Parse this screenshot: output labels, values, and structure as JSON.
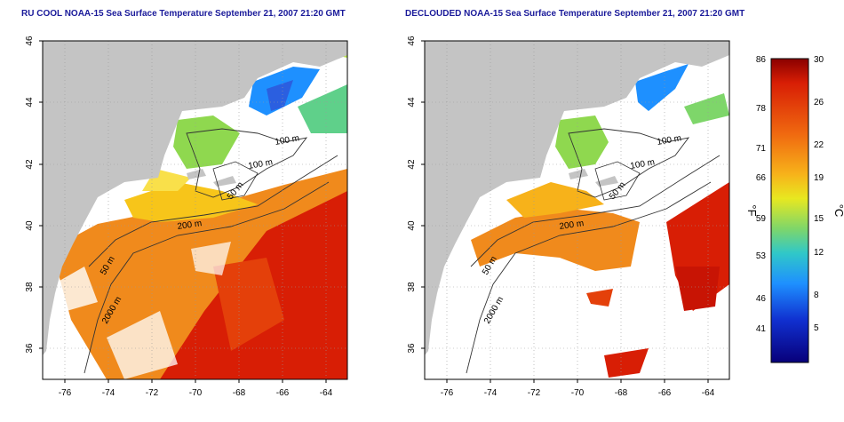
{
  "panels": [
    {
      "title": "RU COOL NOAA-15 Sea Surface Temperature September 21, 2007 21:20 GMT",
      "x_ticks": [
        "-76",
        "-74",
        "-72",
        "-70",
        "-68",
        "-66",
        "-64"
      ],
      "y_ticks": [
        "46",
        "44",
        "42",
        "40",
        "38",
        "36"
      ],
      "contour_labels": [
        "100 m",
        "100 m",
        "50 m",
        "200 m",
        "50 m",
        "2000 m"
      ]
    },
    {
      "title": "DECLOUDED NOAA-15 Sea Surface Temperature September 21, 2007 21:20 GMT",
      "x_ticks": [
        "-76",
        "-74",
        "-72",
        "-70",
        "-68",
        "-66",
        "-64"
      ],
      "y_ticks": [
        "46",
        "44",
        "42",
        "40",
        "38",
        "36"
      ],
      "contour_labels": [
        "100 m",
        "100 m",
        "50 m",
        "200 m",
        "50 m",
        "2000 m"
      ]
    }
  ],
  "colorbar": {
    "f_label": "°F",
    "c_label": "°C",
    "f_ticks": [
      "86",
      "78",
      "71",
      "66",
      "59",
      "53",
      "46",
      "41"
    ],
    "c_ticks": [
      "30",
      "26",
      "22",
      "19",
      "15",
      "12",
      "8",
      "5"
    ]
  },
  "colors": {
    "land": "#c4c4c4",
    "cloud": "#ffffff",
    "title": "#1a1a9a",
    "warm": "#d81e05",
    "mid": "#f6a21e",
    "cool": "#1e90ff"
  }
}
